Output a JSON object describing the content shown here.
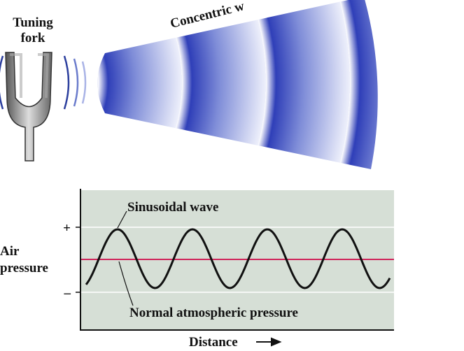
{
  "top": {
    "fork_label": [
      "Tuning",
      "fork"
    ],
    "waves_label": "Concentric w"
  },
  "graph": {
    "wave_label": "Sinusoidal wave",
    "plus": "+",
    "minus": "–",
    "y_label": [
      "Air",
      "pressure"
    ],
    "baseline_label": "Normal atmospheric pressure",
    "x_label": "Distance"
  }
}
